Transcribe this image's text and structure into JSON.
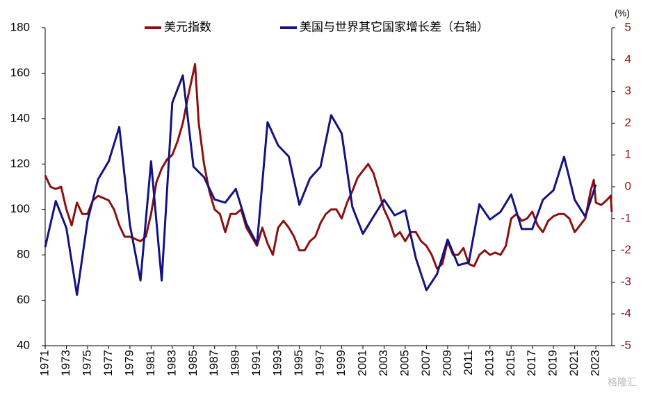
{
  "chart_data": {
    "type": "line",
    "legend_position": "top",
    "y2_unit": "(%)",
    "watermark": "格隆汇",
    "xlim": [
      1971,
      2024.5
    ],
    "xticks": [
      1971,
      1973,
      1975,
      1977,
      1979,
      1981,
      1983,
      1985,
      1987,
      1989,
      1991,
      1993,
      1995,
      1997,
      1999,
      2001,
      2003,
      2005,
      2007,
      2009,
      2011,
      2013,
      2015,
      2017,
      2019,
      2021,
      2023
    ],
    "ylim": [
      40,
      180
    ],
    "yticks": [
      40,
      60,
      80,
      100,
      120,
      140,
      160,
      180
    ],
    "y2lim": [
      -5,
      5
    ],
    "y2ticks": [
      -5,
      -4,
      -3,
      -2,
      -1,
      0,
      1,
      2,
      3,
      4,
      5
    ],
    "series": [
      {
        "name": "美元指数",
        "color": "#8b1010",
        "axis": "y",
        "x": [
          1971,
          1971.5,
          1972,
          1972.5,
          1973,
          1973.5,
          1974,
          1974.5,
          1975,
          1975.5,
          1976,
          1976.5,
          1977,
          1977.5,
          1978,
          1978.5,
          1979,
          1979.5,
          1980,
          1980.5,
          1981,
          1981.5,
          1982,
          1982.5,
          1983,
          1983.5,
          1984,
          1984.5,
          1985.15,
          1985.5,
          1986,
          1986.5,
          1987,
          1987.5,
          1988,
          1988.5,
          1989,
          1989.5,
          1990,
          1990.5,
          1991,
          1991.5,
          1992,
          1992.5,
          1993,
          1993.5,
          1994,
          1994.5,
          1995,
          1995.5,
          1996,
          1996.5,
          1997,
          1997.5,
          1998,
          1998.5,
          1999,
          1999.5,
          2000,
          2000.5,
          2001,
          2001.5,
          2002,
          2002.5,
          2003,
          2003.5,
          2004,
          2004.5,
          2005,
          2005.5,
          2006,
          2006.5,
          2007,
          2007.5,
          2008,
          2008.5,
          2009,
          2009.5,
          2010,
          2010.5,
          2011,
          2011.5,
          2012,
          2012.5,
          2013,
          2013.5,
          2014,
          2014.5,
          2015,
          2015.5,
          2016,
          2016.5,
          2017,
          2017.5,
          2018,
          2018.5,
          2019,
          2019.5,
          2020,
          2020.5,
          2021,
          2021.5,
          2022,
          2022.5,
          2022.8,
          2023,
          2023.5,
          2024,
          2024.4,
          2024.5
        ],
        "values": [
          115,
          110,
          109,
          110,
          100,
          93,
          103,
          98,
          98,
          104,
          106,
          105,
          104,
          100,
          93,
          88,
          88,
          87,
          86,
          88,
          98,
          112,
          118,
          122,
          124,
          130,
          138,
          150,
          164,
          138,
          120,
          108,
          100,
          98,
          90,
          98,
          98,
          100,
          92,
          88,
          84,
          92,
          85,
          80,
          92,
          95,
          92,
          88,
          82,
          82,
          86,
          88,
          94,
          98,
          100,
          100,
          96,
          103,
          108,
          114,
          117,
          120,
          116,
          108,
          100,
          95,
          88,
          90,
          86,
          90,
          90,
          86,
          84,
          80,
          74,
          76,
          86,
          80,
          80,
          83,
          76,
          75,
          80,
          82,
          80,
          81,
          80,
          84,
          96,
          98,
          95,
          96,
          99,
          93,
          90,
          95,
          97,
          98,
          98,
          96,
          90,
          93,
          96,
          108,
          113,
          103,
          102,
          104,
          106,
          99
        ]
      },
      {
        "name": "美国与世界其它国家增长差（右轴）",
        "color": "#13137f",
        "axis": "y2",
        "x": [
          1971,
          1972,
          1973,
          1974,
          1975,
          1976,
          1977,
          1978,
          1979,
          1980,
          1981,
          1982,
          1983,
          1984,
          1985,
          1986,
          1987,
          1988,
          1989,
          1990,
          1991,
          1992,
          1993,
          1994,
          1995,
          1996,
          1997,
          1998,
          1999,
          2000,
          2001,
          2002,
          2003,
          2004,
          2005,
          2006,
          2007,
          2008,
          2009,
          2010,
          2011,
          2012,
          2013,
          2014,
          2015,
          2016,
          2017,
          2018,
          2019,
          2020,
          2021,
          2022,
          2023
        ],
        "values": [
          -1.9,
          -0.45,
          -1.3,
          -3.4,
          -1.07,
          0.24,
          0.8,
          1.88,
          -1.2,
          -2.95,
          0.8,
          -2.95,
          2.64,
          3.5,
          0.63,
          0.3,
          -0.4,
          -0.5,
          -0.07,
          -1.16,
          -1.8,
          2.03,
          1.3,
          0.95,
          -0.57,
          0.26,
          0.63,
          2.25,
          1.68,
          -0.63,
          -1.48,
          -0.94,
          -0.41,
          -0.9,
          -0.74,
          -2.25,
          -3.25,
          -2.75,
          -1.66,
          -2.47,
          -2.38,
          -0.55,
          -1.03,
          -0.79,
          -0.24,
          -1.33,
          -1.33,
          -0.41,
          -0.11,
          0.94,
          -0.41,
          -0.94,
          0.07
        ]
      }
    ]
  }
}
